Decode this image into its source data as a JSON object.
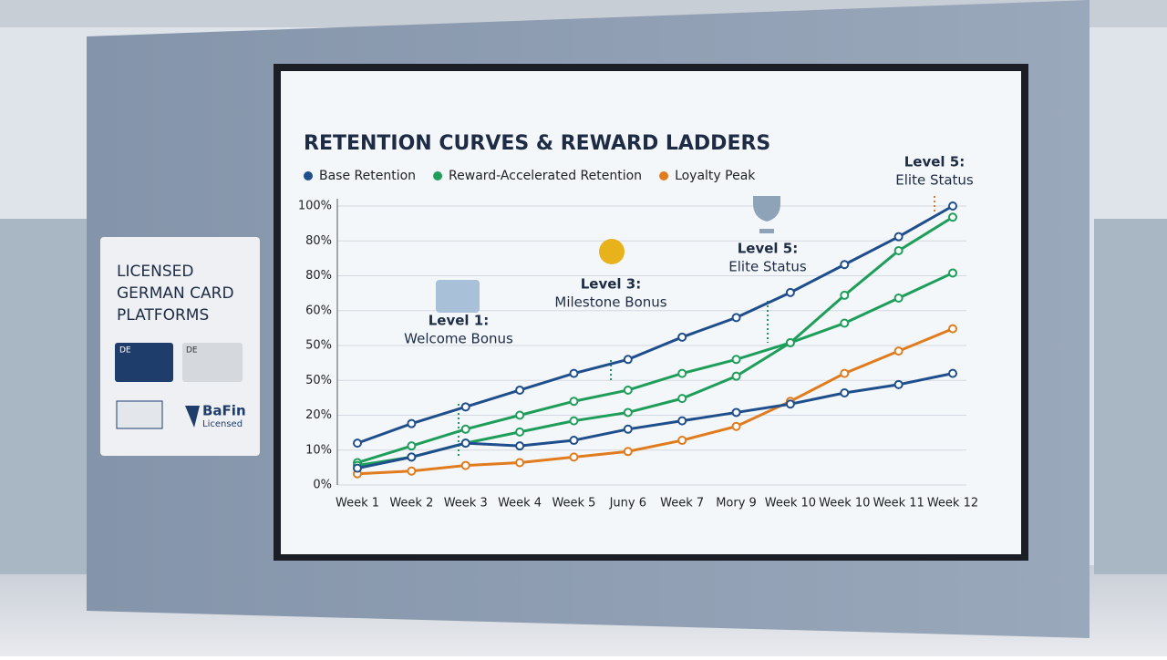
{
  "chart_data": {
    "type": "line",
    "title": "RETENTION CURVES & REWARD LADDERS",
    "categories": [
      "Week 1",
      "Week 2",
      "Week 3",
      "Week 4",
      "Week 5",
      "Juny 6",
      "Week 7",
      "Mory 9",
      "Week 10",
      "Week 10",
      "Week 11",
      "Week 12"
    ],
    "y_axis_labels": [
      "0%",
      "10%",
      "20%",
      "50%",
      "50%",
      "60%",
      "80%",
      "80%",
      "100%"
    ],
    "ylim": [
      0,
      100
    ],
    "grid": true,
    "series": [
      {
        "name": "Base Retention",
        "color": "#1f4e8c",
        "values": [
          15,
          22,
          28,
          34,
          40,
          45,
          53,
          60,
          69,
          79,
          89,
          100
        ]
      },
      {
        "name": "Reward-Accelerated Retention",
        "color": "#1e9e5a",
        "values": [
          8,
          14,
          20,
          25,
          30,
          34,
          40,
          45,
          51,
          68,
          84,
          96
        ]
      },
      {
        "name": "Loyalty Peak",
        "color": "#e07b1e",
        "values": [
          4,
          5,
          7,
          8,
          10,
          12,
          16,
          21,
          30,
          40,
          48,
          56
        ]
      },
      {
        "color": "#1e9e5a",
        "values": [
          7,
          10,
          15,
          19,
          23,
          26,
          31,
          39,
          51,
          58,
          67,
          76
        ]
      },
      {
        "color": "#1f4e8c",
        "values": [
          6,
          10,
          15,
          14,
          16,
          20,
          23,
          26,
          29,
          33,
          36,
          40
        ]
      }
    ],
    "annotations": [
      {
        "title": "Level 1:",
        "text": "Welcome Bonus"
      },
      {
        "title": "Level 3:",
        "text": "Milestone Bonus"
      },
      {
        "title": "Level 5:",
        "text": "Elite Status"
      },
      {
        "title": "Level 5:",
        "text": "Elite Status"
      }
    ]
  },
  "sign": {
    "title": "LICENSED GERMAN CARD PLATFORMS",
    "cards": [
      "DE",
      "DE"
    ],
    "badge": "BaFin",
    "badge_note": "Licensed"
  }
}
